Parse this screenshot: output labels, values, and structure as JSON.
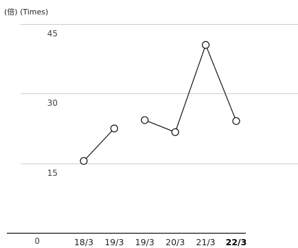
{
  "chart_data": {
    "type": "line",
    "unit_label": "(倍) (Times)",
    "ylim": [
      0,
      45
    ],
    "yticks": [
      "0",
      "15",
      "30",
      "45"
    ],
    "categories": [
      "18/3",
      "19/3",
      "19/3",
      "20/3",
      "21/3",
      "22/3"
    ],
    "highlight_category_index": 5,
    "segments": [
      [
        {
          "x": 0,
          "y": 15.5
        },
        {
          "x": 1,
          "y": 22.5
        }
      ],
      [
        {
          "x": 2,
          "y": 24.3
        },
        {
          "x": 3,
          "y": 21.7
        },
        {
          "x": 4,
          "y": 40.5
        },
        {
          "x": 5,
          "y": 24.1
        }
      ]
    ],
    "grid": true,
    "legend": "none",
    "colors": {
      "line": "#111111",
      "grid": "#cccccc",
      "axis": "#111111",
      "marker_fill": "#ffffff"
    }
  }
}
